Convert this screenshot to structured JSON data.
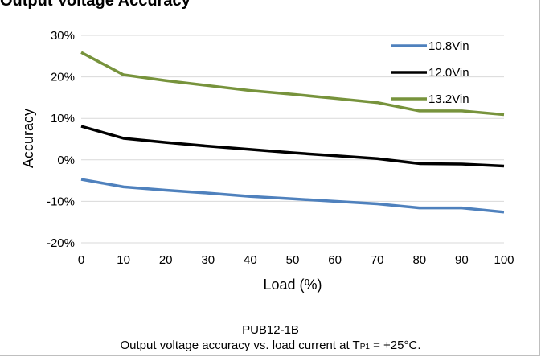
{
  "heading": "Output Voltage Accuracy",
  "caption": {
    "model": "PUB12-1B",
    "text_before": "Output voltage accuracy vs. load current at T",
    "subscript": "P1",
    "text_after": " = +25°C."
  },
  "chart_data": {
    "type": "line",
    "xlabel": "Load (%)",
    "ylabel": "Accuracy",
    "x": [
      0,
      10,
      20,
      30,
      40,
      50,
      60,
      70,
      80,
      90,
      100
    ],
    "xlim": [
      0,
      100
    ],
    "xticks": [
      "0",
      "10",
      "20",
      "30",
      "40",
      "50",
      "60",
      "70",
      "80",
      "90",
      "100"
    ],
    "ylim": [
      -20,
      30
    ],
    "yticks": [
      "-20%",
      "-10%",
      "0%",
      "10%",
      "20%",
      "30%"
    ],
    "grid": "horizontal",
    "legend": "top-right",
    "series": [
      {
        "name": "10.8Vin",
        "color": "#4f81bd",
        "values": [
          -4.7,
          -6.5,
          -7.3,
          -8.0,
          -8.8,
          -9.4,
          -10.0,
          -10.6,
          -11.6,
          -11.6,
          -12.6
        ]
      },
      {
        "name": "12.0Vin",
        "color": "#000000",
        "values": [
          8.1,
          5.2,
          4.2,
          3.3,
          2.5,
          1.7,
          1.0,
          0.3,
          -0.9,
          -1.0,
          -1.5
        ]
      },
      {
        "name": "13.2Vin",
        "color": "#77933c",
        "values": [
          25.9,
          20.5,
          19.1,
          17.9,
          16.7,
          15.8,
          14.8,
          13.8,
          11.8,
          11.8,
          10.9
        ]
      }
    ]
  }
}
